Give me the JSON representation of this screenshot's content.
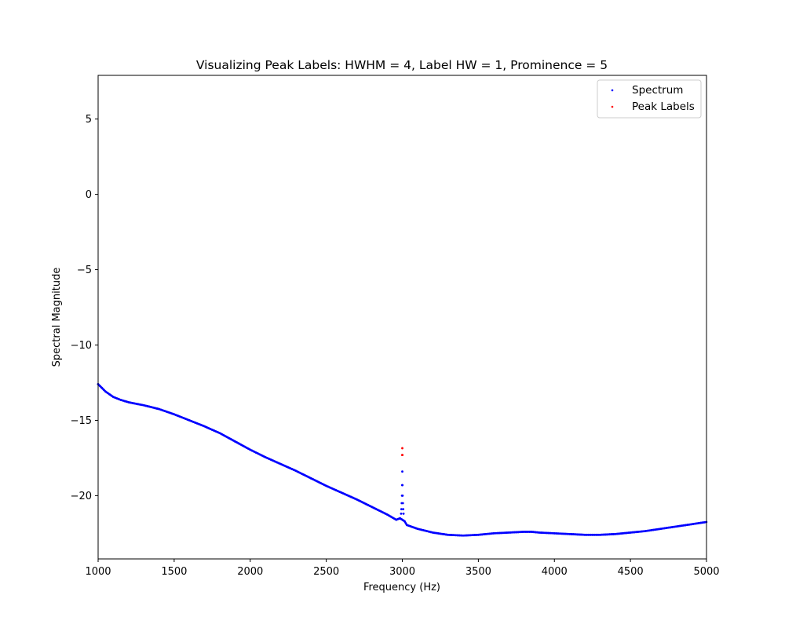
{
  "chart_data": {
    "type": "scatter",
    "title": "Visualizing Peak Labels: HWHM = 4, Label HW = 1, Prominence = 5",
    "xlabel": "Frequency (Hz)",
    "ylabel": "Spectral Magnitude",
    "xlim": [
      1000,
      5000
    ],
    "ylim": [
      -24.2,
      7.9
    ],
    "x_ticks": [
      1000,
      1500,
      2000,
      2500,
      3000,
      3500,
      4000,
      4500,
      5000
    ],
    "x_tick_labels": [
      "1000",
      "1500",
      "2000",
      "2500",
      "3000",
      "3500",
      "4000",
      "4500",
      "5000"
    ],
    "y_ticks": [
      5,
      0,
      -5,
      -10,
      -15,
      -20
    ],
    "y_tick_labels": [
      "5",
      "0",
      "−5",
      "−10",
      "−15",
      "−20"
    ],
    "grid": false,
    "legend_position": "top-right",
    "series": [
      {
        "name": "Spectrum",
        "color": "#0000ff",
        "baseline": [
          [
            1000,
            -12.6
          ],
          [
            1050,
            -13.1
          ],
          [
            1100,
            -13.45
          ],
          [
            1150,
            -13.65
          ],
          [
            1200,
            -13.8
          ],
          [
            1300,
            -14.0
          ],
          [
            1400,
            -14.25
          ],
          [
            1500,
            -14.6
          ],
          [
            1600,
            -15.0
          ],
          [
            1700,
            -15.4
          ],
          [
            1800,
            -15.85
          ],
          [
            1900,
            -16.4
          ],
          [
            2000,
            -16.95
          ],
          [
            2100,
            -17.45
          ],
          [
            2200,
            -17.9
          ],
          [
            2300,
            -18.35
          ],
          [
            2400,
            -18.85
          ],
          [
            2500,
            -19.35
          ],
          [
            2600,
            -19.8
          ],
          [
            2700,
            -20.25
          ],
          [
            2800,
            -20.75
          ],
          [
            2900,
            -21.25
          ],
          [
            2960,
            -21.6
          ],
          [
            2985,
            -21.5
          ],
          [
            3015,
            -21.7
          ],
          [
            3030,
            -21.95
          ],
          [
            3100,
            -22.2
          ],
          [
            3200,
            -22.45
          ],
          [
            3300,
            -22.6
          ],
          [
            3400,
            -22.65
          ],
          [
            3500,
            -22.6
          ],
          [
            3600,
            -22.5
          ],
          [
            3700,
            -22.45
          ],
          [
            3800,
            -22.4
          ],
          [
            3850,
            -22.4
          ],
          [
            3900,
            -22.45
          ],
          [
            4000,
            -22.5
          ],
          [
            4100,
            -22.55
          ],
          [
            4200,
            -22.6
          ],
          [
            4300,
            -22.6
          ],
          [
            4400,
            -22.55
          ],
          [
            4500,
            -22.45
          ],
          [
            4600,
            -22.35
          ],
          [
            4700,
            -22.2
          ],
          [
            4800,
            -22.05
          ],
          [
            4900,
            -21.9
          ],
          [
            5000,
            -21.75
          ]
        ],
        "points": [
          [
            2992,
            -21.2
          ],
          [
            2994,
            -20.9
          ],
          [
            2996,
            -20.5
          ],
          [
            2998,
            -20.0
          ],
          [
            2999,
            -19.3
          ],
          [
            3000,
            -18.4
          ],
          [
            3001,
            -19.3
          ],
          [
            3002,
            -20.0
          ],
          [
            3004,
            -20.5
          ],
          [
            3006,
            -20.9
          ],
          [
            3008,
            -21.2
          ]
        ]
      },
      {
        "name": "Peak Labels",
        "color": "#ff0000",
        "points": [
          [
            2999,
            -17.3
          ],
          [
            3000,
            -16.85
          ],
          [
            3001,
            -17.3
          ]
        ]
      }
    ]
  }
}
